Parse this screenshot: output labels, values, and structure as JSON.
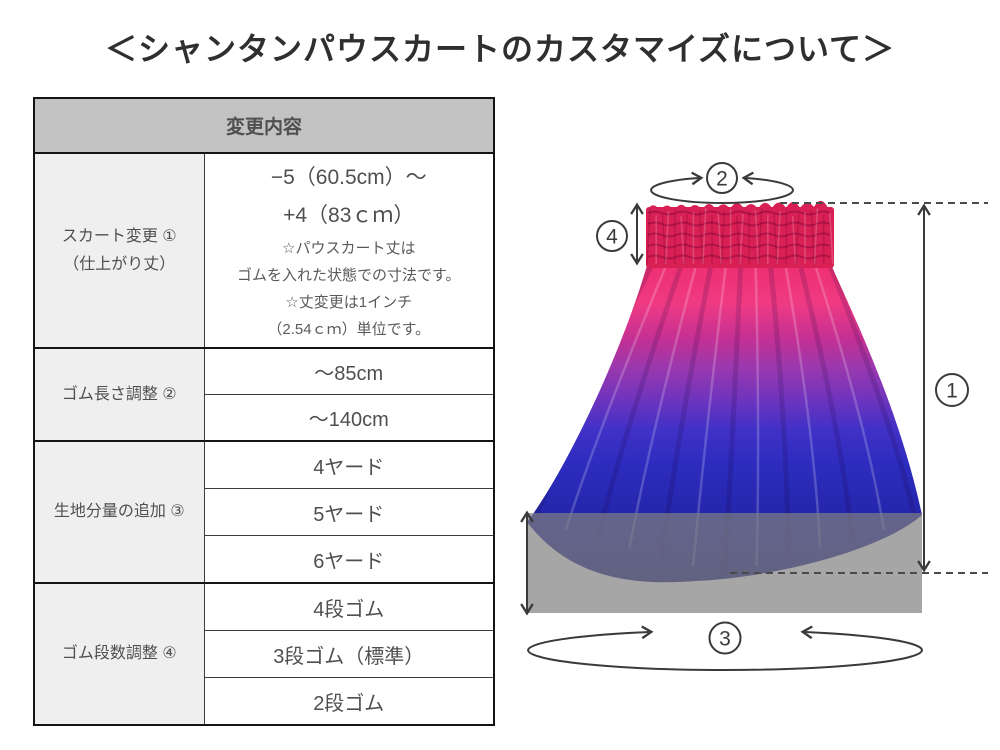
{
  "page_title": "＜シャンタンパウスカートのカスタマイズについて＞",
  "table": {
    "header": "変更内容",
    "groups": [
      {
        "label_lines": [
          "スカート変更 ①",
          "（仕上がり丈）"
        ],
        "detail": {
          "main_lines": [
            "−5（60.5cm）～",
            "+4（83ｃｍ）"
          ],
          "notes": [
            "☆パウスカート丈は",
            "ゴムを入れた状態での寸法です。",
            "☆丈変更は1インチ",
            "（2.54ｃｍ）単位です。"
          ]
        }
      },
      {
        "label": "ゴム長さ調整 ②",
        "options": [
          "～85cm",
          "～140cm"
        ]
      },
      {
        "label": "生地分量の追加 ③",
        "options": [
          "4ヤード",
          "5ヤード",
          "6ヤード"
        ]
      },
      {
        "label": "ゴム段数調整 ④",
        "options": [
          "4段ゴム",
          "3段ゴム（標準）",
          "2段ゴム"
        ]
      }
    ]
  },
  "diagram": {
    "callouts": {
      "skirt_length": "1",
      "elastic_length": "2",
      "fabric_volume": "3",
      "elastic_rows": "4"
    },
    "colors": {
      "waistband": "#d92055",
      "gradient_stops": [
        "#ee2e6f",
        "#ef3a83",
        "#c43093",
        "#9a38ae",
        "#6e34bd",
        "#4231c6",
        "#2d2cbe",
        "#2527ae",
        "#1f1f97",
        "#1a1a82"
      ],
      "overlay_gray": "#808080",
      "annotation": "#3a3a3a"
    }
  }
}
